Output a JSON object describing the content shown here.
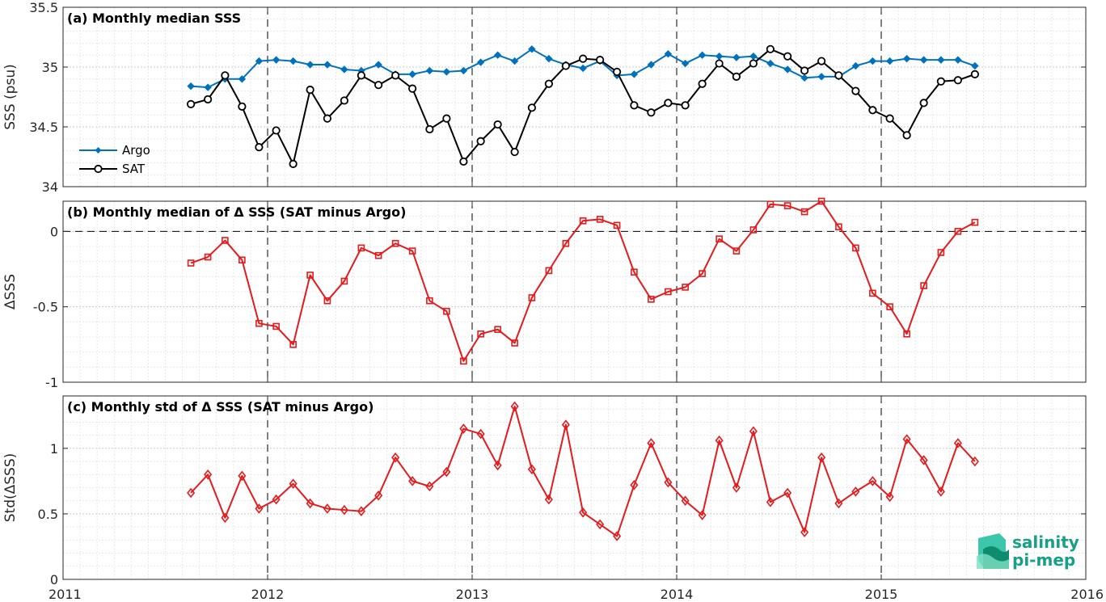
{
  "chart_data": [
    {
      "type": "line",
      "title": "(a) Monthly median SSS",
      "xlabel": "",
      "ylabel": "SSS (psu)",
      "xlim": [
        2011,
        2016
      ],
      "ylim": [
        34,
        35.5
      ],
      "xticks": [
        2011,
        2012,
        2013,
        2014,
        2015,
        2016
      ],
      "yticks": [
        34,
        34.5,
        35,
        35.5
      ],
      "ytick_labels": [
        "34",
        "34.5",
        "35",
        "35.5"
      ],
      "grid": true,
      "legend_position": "left",
      "legend": [
        "Argo",
        "SAT"
      ],
      "x": [
        2011.625,
        2011.708,
        2011.792,
        2011.875,
        2011.958,
        2012.042,
        2012.125,
        2012.208,
        2012.292,
        2012.375,
        2012.458,
        2012.542,
        2012.625,
        2012.708,
        2012.792,
        2012.875,
        2012.958,
        2013.042,
        2013.125,
        2013.208,
        2013.292,
        2013.375,
        2013.458,
        2013.542,
        2013.625,
        2013.708,
        2013.792,
        2013.875,
        2013.958,
        2014.042,
        2014.125,
        2014.208,
        2014.292,
        2014.375,
        2014.458,
        2014.542,
        2014.625,
        2014.708,
        2014.792,
        2014.875,
        2014.958,
        2015.042,
        2015.125,
        2015.208,
        2015.292,
        2015.375,
        2015.458
      ],
      "series": [
        {
          "name": "Argo",
          "color": "#0072bd",
          "marker": "diamond-filled",
          "values": [
            34.84,
            34.83,
            34.9,
            34.9,
            35.05,
            35.06,
            35.05,
            35.02,
            35.02,
            34.98,
            34.97,
            35.02,
            34.94,
            34.94,
            34.97,
            34.96,
            34.97,
            35.04,
            35.1,
            35.05,
            35.15,
            35.07,
            35.02,
            34.99,
            35.05,
            34.93,
            34.94,
            35.02,
            35.11,
            35.03,
            35.1,
            35.09,
            35.08,
            35.09,
            35.03,
            34.98,
            34.91,
            34.92,
            34.92,
            35.01,
            35.05,
            35.05,
            35.07,
            35.06,
            35.06,
            35.06,
            35.01
          ]
        },
        {
          "name": "SAT",
          "color": "#000000",
          "marker": "circle-open",
          "values": [
            34.69,
            34.73,
            34.93,
            34.67,
            34.33,
            34.47,
            34.19,
            34.81,
            34.57,
            34.72,
            34.93,
            34.85,
            34.93,
            34.82,
            34.48,
            34.57,
            34.21,
            34.38,
            34.52,
            34.29,
            34.66,
            34.86,
            35.01,
            35.07,
            35.06,
            34.96,
            34.68,
            34.62,
            34.7,
            34.68,
            34.86,
            35.03,
            34.92,
            35.03,
            35.15,
            35.09,
            34.97,
            35.05,
            34.93,
            34.8,
            34.64,
            34.57,
            34.43,
            34.7,
            34.88,
            34.89,
            34.94
          ]
        }
      ]
    },
    {
      "type": "line",
      "title": "(b) Monthly median of Δ SSS (SAT minus Argo)",
      "xlabel": "",
      "ylabel": "ΔSSS",
      "xlim": [
        2011,
        2016
      ],
      "ylim": [
        -1,
        0.2
      ],
      "yticks": [
        -1,
        -0.5,
        0
      ],
      "ytick_labels": [
        "-1",
        "-0.5",
        "0"
      ],
      "grid": true,
      "reference_line": 0,
      "x": [
        2011.625,
        2011.708,
        2011.792,
        2011.875,
        2011.958,
        2012.042,
        2012.125,
        2012.208,
        2012.292,
        2012.375,
        2012.458,
        2012.542,
        2012.625,
        2012.708,
        2012.792,
        2012.875,
        2012.958,
        2013.042,
        2013.125,
        2013.208,
        2013.292,
        2013.375,
        2013.458,
        2013.542,
        2013.625,
        2013.708,
        2013.792,
        2013.875,
        2013.958,
        2014.042,
        2014.125,
        2014.208,
        2014.292,
        2014.375,
        2014.458,
        2014.542,
        2014.625,
        2014.708,
        2014.792,
        2014.875,
        2014.958,
        2015.042,
        2015.125,
        2015.208,
        2015.292,
        2015.375,
        2015.458
      ],
      "series": [
        {
          "name": "",
          "color": "#e41a1c",
          "marker": "square-open",
          "values": [
            -0.21,
            -0.17,
            -0.06,
            -0.19,
            -0.61,
            -0.63,
            -0.75,
            -0.29,
            -0.46,
            -0.33,
            -0.11,
            -0.16,
            -0.08,
            -0.13,
            -0.46,
            -0.53,
            -0.86,
            -0.68,
            -0.65,
            -0.74,
            -0.44,
            -0.26,
            -0.08,
            0.07,
            0.08,
            0.04,
            -0.27,
            -0.45,
            -0.4,
            -0.37,
            -0.28,
            -0.05,
            -0.13,
            0.01,
            0.18,
            0.17,
            0.13,
            0.2,
            0.03,
            -0.11,
            -0.41,
            -0.5,
            -0.68,
            -0.36,
            -0.14,
            0.0,
            0.06
          ]
        }
      ]
    },
    {
      "type": "line",
      "title": "(c) Monthly std of Δ SSS (SAT minus Argo)",
      "xlabel": "",
      "ylabel": "Std(ΔSSS)",
      "xlim": [
        2011,
        2016
      ],
      "ylim": [
        0,
        1.4
      ],
      "yticks": [
        0,
        0.5,
        1
      ],
      "ytick_labels": [
        "0",
        "0.5",
        "1"
      ],
      "grid": true,
      "x": [
        2011.625,
        2011.708,
        2011.792,
        2011.875,
        2011.958,
        2012.042,
        2012.125,
        2012.208,
        2012.292,
        2012.375,
        2012.458,
        2012.542,
        2012.625,
        2012.708,
        2012.792,
        2012.875,
        2012.958,
        2013.042,
        2013.125,
        2013.208,
        2013.292,
        2013.375,
        2013.458,
        2013.542,
        2013.625,
        2013.708,
        2013.792,
        2013.875,
        2013.958,
        2014.042,
        2014.125,
        2014.208,
        2014.292,
        2014.375,
        2014.458,
        2014.542,
        2014.625,
        2014.708,
        2014.792,
        2014.875,
        2014.958,
        2015.042,
        2015.125,
        2015.208,
        2015.292,
        2015.375,
        2015.458
      ],
      "series": [
        {
          "name": "",
          "color": "#e41a1c",
          "marker": "diamond-open",
          "values": [
            0.66,
            0.8,
            0.47,
            0.79,
            0.54,
            0.61,
            0.73,
            0.58,
            0.54,
            0.53,
            0.52,
            0.64,
            0.93,
            0.75,
            0.71,
            0.82,
            1.15,
            1.11,
            0.87,
            1.32,
            0.84,
            0.61,
            1.18,
            0.51,
            0.42,
            0.33,
            0.72,
            1.04,
            0.74,
            0.6,
            0.49,
            1.06,
            0.7,
            1.13,
            0.59,
            0.66,
            0.36,
            0.93,
            0.58,
            0.67,
            0.75,
            0.63,
            1.07,
            0.91,
            0.67,
            1.04,
            0.9
          ]
        }
      ]
    }
  ],
  "xtick_labels": [
    "2011",
    "2012",
    "2013",
    "2014",
    "2015",
    "2016"
  ],
  "logo": {
    "line1": "salinity",
    "line2": "pi-mep"
  }
}
